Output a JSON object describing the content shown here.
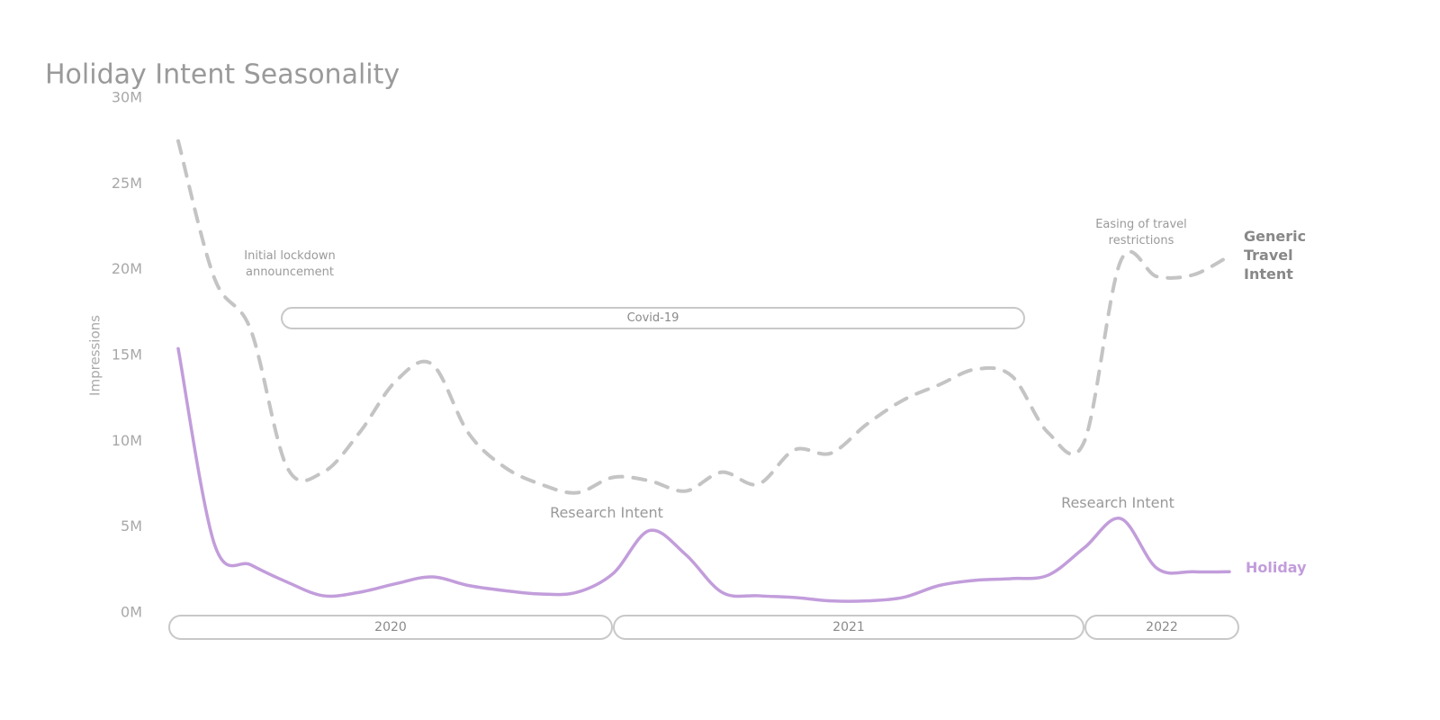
{
  "chart_data": {
    "type": "line",
    "title": "Holiday Intent Seasonality",
    "ylabel": "Impressions",
    "categories": [
      null,
      null,
      null,
      null,
      null,
      null,
      null,
      null,
      null,
      null,
      null,
      null,
      null,
      null,
      null,
      null,
      null,
      null,
      null,
      null,
      null,
      null,
      null,
      null,
      null,
      null,
      null,
      null,
      null,
      null
    ],
    "series": [
      {
        "name": "Generic Travel Intent",
        "color": "#c4c4c4",
        "dashed": true,
        "values": [
          27.5,
          19.5,
          16.5,
          8.5,
          8.2,
          10.5,
          13.5,
          14.5,
          10.5,
          8.5,
          7.5,
          7.0,
          7.9,
          7.7,
          7.1,
          8.2,
          7.5,
          9.5,
          9.3,
          11.0,
          12.4,
          13.3,
          14.2,
          13.8,
          10.5,
          10.0,
          20.5,
          19.6,
          19.7,
          20.8
        ]
      },
      {
        "name": "Holiday",
        "color": "#c29ddb",
        "dashed": false,
        "values": [
          15.4,
          4.0,
          2.8,
          1.8,
          1.0,
          1.2,
          1.7,
          2.1,
          1.6,
          1.3,
          1.1,
          1.2,
          2.3,
          4.8,
          3.4,
          1.2,
          1.0,
          0.9,
          0.7,
          0.7,
          0.9,
          1.6,
          1.9,
          2.0,
          2.2,
          3.8,
          5.5,
          2.6,
          2.4,
          2.4
        ]
      }
    ],
    "ylim": [
      0,
      30
    ],
    "yticks": [
      {
        "value": 0,
        "label": "0M"
      },
      {
        "value": 5,
        "label": "5M"
      },
      {
        "value": 10,
        "label": "10M"
      },
      {
        "value": 15,
        "label": "15M"
      },
      {
        "value": 20,
        "label": "20M"
      },
      {
        "value": 25,
        "label": "25M"
      },
      {
        "value": 30,
        "label": "30M"
      }
    ],
    "grid": false,
    "annotations": [
      "Initial lockdown announcement",
      "Covid-19",
      "Research Intent",
      "Research Intent",
      "Easing of travel restrictions"
    ],
    "periods": [
      "2020",
      "2021",
      "2022"
    ]
  }
}
